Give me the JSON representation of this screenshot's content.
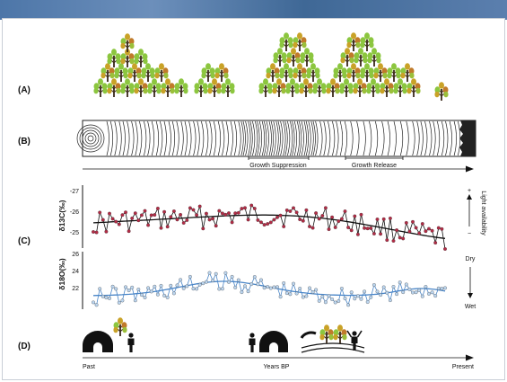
{
  "panel_labels": {
    "a": "(A)",
    "b": "(B)",
    "c": "(C)",
    "d": "(D)"
  },
  "ring_annotations": {
    "suppression": "Growth Suppression",
    "release": "Growth Release"
  },
  "carbon_axis": {
    "ylabel": "δ13C(‰)",
    "ticks": [
      "-27",
      "-26",
      "-25"
    ],
    "right_label": "Light availability",
    "plus": "+",
    "minus": "−"
  },
  "oxygen_axis": {
    "ylabel": "δ18O(‰)",
    "ticks": [
      "26",
      "24",
      "22"
    ],
    "dry": "Dry",
    "wet": "Wet"
  },
  "time_axis": {
    "past": "Past",
    "middle": "Years BP",
    "present": "Present"
  },
  "colors": {
    "carbon_points": "#b32b45",
    "oxygen_series": "#4a86c8",
    "trend": "#111111",
    "leaf_green": "#8cc63f",
    "leaf_autumn": "#c9a227",
    "trunk": "#3b2a1a"
  },
  "icons": [
    "tree-icon",
    "autumn-tree-icon",
    "tree-ring-icon",
    "igloo-icon",
    "person-icon",
    "raised-arms-person-icon",
    "bridge-icon"
  ]
}
